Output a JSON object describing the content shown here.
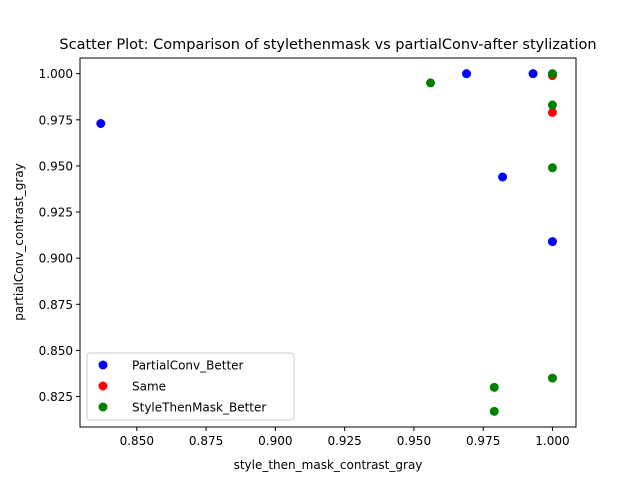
{
  "chart_data": {
    "type": "scatter",
    "title": "Scatter Plot: Comparison of stylethenmask vs partialConv-after stylization",
    "xlabel": "style_then_mask_contrast_gray",
    "ylabel": "partialConv_contrast_gray",
    "xlim": [
      0.8295,
      1.0085
    ],
    "ylim": [
      0.8085,
      1.0085
    ],
    "x_ticks": [
      0.85,
      0.875,
      0.9,
      0.925,
      0.95,
      0.975,
      1.0
    ],
    "x_tick_labels": [
      "0.850",
      "0.875",
      "0.900",
      "0.925",
      "0.950",
      "0.975",
      "1.000"
    ],
    "y_ticks": [
      0.825,
      0.85,
      0.875,
      0.9,
      0.925,
      0.95,
      0.975,
      1.0
    ],
    "y_tick_labels": [
      "0.825",
      "0.850",
      "0.875",
      "0.900",
      "0.925",
      "0.950",
      "0.975",
      "1.000"
    ],
    "grid": false,
    "legend_position": "lower-left",
    "series": [
      {
        "name": "PartialConv_Better",
        "color": "#0000ff",
        "points": [
          [
            0.837,
            0.973
          ],
          [
            0.969,
            1.0
          ],
          [
            0.993,
            1.0
          ],
          [
            0.982,
            0.944
          ],
          [
            1.0,
            0.909
          ]
        ]
      },
      {
        "name": "Same",
        "color": "#ff0000",
        "points": [
          [
            1.0,
            0.999
          ],
          [
            1.0,
            0.979
          ]
        ]
      },
      {
        "name": "StyleThenMask_Better",
        "color": "#008000",
        "points": [
          [
            0.956,
            0.995
          ],
          [
            1.0,
            1.0
          ],
          [
            1.0,
            0.983
          ],
          [
            1.0,
            0.949
          ],
          [
            0.979,
            0.83
          ],
          [
            0.979,
            0.817
          ],
          [
            1.0,
            0.835
          ]
        ]
      }
    ]
  }
}
